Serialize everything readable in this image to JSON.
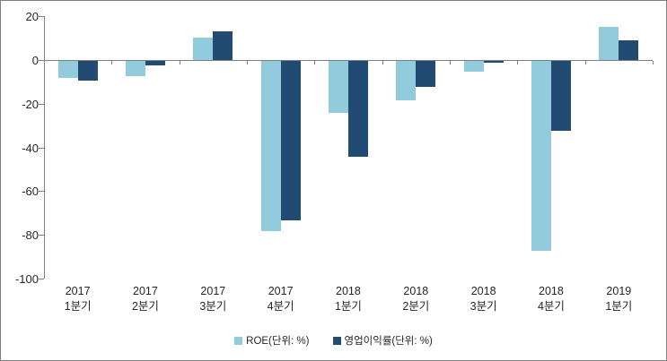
{
  "chart_data": {
    "type": "bar",
    "title": "",
    "xlabel": "",
    "ylabel": "",
    "categories": [
      {
        "year": "2017",
        "quarter": "1분기"
      },
      {
        "year": "2017",
        "quarter": "2분기"
      },
      {
        "year": "2017",
        "quarter": "3분기"
      },
      {
        "year": "2017",
        "quarter": "4분기"
      },
      {
        "year": "2018",
        "quarter": "1분기"
      },
      {
        "year": "2018",
        "quarter": "2분기"
      },
      {
        "year": "2018",
        "quarter": "3분기"
      },
      {
        "year": "2018",
        "quarter": "4분기"
      },
      {
        "year": "2019",
        "quarter": "1분기"
      }
    ],
    "series": [
      {
        "name": "ROE(단위: %)",
        "color": "#92CBDC",
        "values": [
          -8,
          -7,
          10,
          -78,
          -24,
          -18,
          -5,
          -87,
          15
        ]
      },
      {
        "name": "영업이익률(단위: %)",
        "color": "#214B72",
        "values": [
          -9,
          -2,
          13,
          -73,
          -44,
          -12,
          -1,
          -32,
          9
        ]
      }
    ],
    "ylim": [
      -100,
      20
    ],
    "yticks": [
      20,
      0,
      -20,
      -40,
      -60,
      -80,
      -100
    ],
    "grid": false,
    "legend_position": "bottom",
    "axis_color": "#808080",
    "text_color": "#262626",
    "background": "#FFFFFF",
    "border_color": "#7F7F7F"
  }
}
